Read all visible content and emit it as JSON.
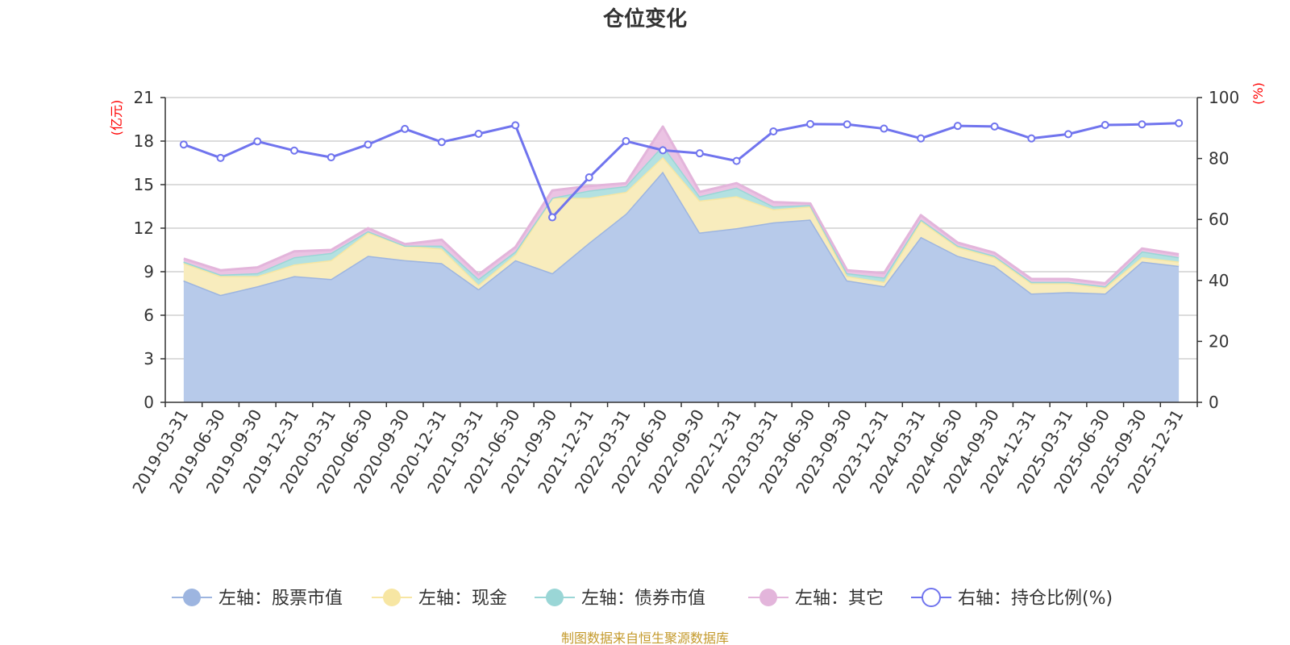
{
  "chart_data": {
    "type": "area",
    "title": "仓位变化",
    "left_axis": {
      "unit": "(亿元)",
      "range": [
        0,
        21
      ],
      "ticks": [
        "0",
        "3",
        "6",
        "9",
        "12",
        "15",
        "18",
        "21"
      ],
      "color": "#ff0000"
    },
    "right_axis": {
      "unit": "(%)",
      "range": [
        0,
        100
      ],
      "ticks": [
        "0",
        "20",
        "40",
        "60",
        "80",
        "100"
      ],
      "color": "#ff0000"
    },
    "categories": [
      "2019-03-31",
      "2019-06-30",
      "2019-09-30",
      "2019-12-31",
      "2020-03-31",
      "2020-06-30",
      "2020-09-30",
      "2020-12-31",
      "2021-03-31",
      "2021-06-30",
      "2021-09-30",
      "2021-12-31",
      "2022-03-31",
      "2022-06-30",
      "2022-09-30",
      "2022-12-31",
      "2023-03-31",
      "2023-06-30",
      "2023-09-30",
      "2023-12-31",
      "2024-03-31",
      "2024-06-30",
      "2024-09-30",
      "2024-12-31",
      "2025-03-31",
      "2025-06-30",
      "2025-09-30",
      "2025-12-31"
    ],
    "stacked_series": [
      {
        "name": "左轴：股票市值",
        "color": "#9db5e0",
        "fill": "#b7caea",
        "values": [
          8.4,
          7.4,
          8.0,
          8.7,
          8.5,
          10.1,
          9.8,
          9.6,
          7.8,
          9.8,
          8.9,
          11.0,
          13.0,
          15.9,
          11.7,
          12.0,
          12.4,
          12.6,
          8.4,
          8.0,
          11.4,
          10.1,
          9.4,
          7.5,
          7.6,
          7.5,
          9.7,
          9.4
        ]
      },
      {
        "name": "左轴：现金",
        "color": "#f7e6a3",
        "fill": "#f8ecbd",
        "values": [
          1.2,
          1.3,
          0.7,
          0.8,
          1.3,
          1.6,
          1.0,
          1.0,
          0.3,
          0.4,
          5.2,
          3.1,
          1.5,
          1.0,
          2.2,
          2.2,
          0.9,
          0.9,
          0.3,
          0.3,
          1.1,
          0.6,
          0.6,
          0.7,
          0.6,
          0.4,
          0.3,
          0.3
        ]
      },
      {
        "name": "左轴：债券市值",
        "color": "#9ad6d6",
        "fill": "#b3e1e1",
        "values": [
          0.1,
          0.1,
          0.2,
          0.5,
          0.5,
          0.1,
          0.0,
          0.2,
          0.4,
          0.2,
          0.0,
          0.5,
          0.4,
          0.8,
          0.3,
          0.6,
          0.2,
          0.1,
          0.2,
          0.3,
          0.1,
          0.1,
          0.1,
          0.1,
          0.1,
          0.1,
          0.4,
          0.3
        ]
      },
      {
        "name": "左轴：其它",
        "color": "#e3b5db",
        "fill": "#ebc3e3",
        "values": [
          0.2,
          0.3,
          0.4,
          0.4,
          0.2,
          0.2,
          0.1,
          0.4,
          0.3,
          0.3,
          0.5,
          0.3,
          0.2,
          1.3,
          0.3,
          0.3,
          0.3,
          0.1,
          0.2,
          0.3,
          0.3,
          0.2,
          0.2,
          0.2,
          0.2,
          0.2,
          0.2,
          0.2
        ]
      }
    ],
    "line_series": {
      "name": "右轴：持仓比例(%)",
      "color": "#7074ee",
      "values": [
        84.6,
        80.2,
        85.6,
        82.6,
        80.4,
        84.6,
        89.7,
        85.4,
        88.1,
        90.9,
        60.7,
        73.8,
        85.7,
        82.7,
        81.7,
        79.2,
        88.9,
        91.3,
        91.2,
        89.8,
        86.6,
        90.7,
        90.5,
        86.6,
        88.0,
        91.0,
        91.2,
        91.6
      ]
    },
    "legend": [
      "左轴：股票市值",
      "左轴：现金",
      "左轴：债券市值",
      "左轴：其它",
      "右轴：持仓比例(%)"
    ],
    "legend_position": "bottom",
    "grid": true
  },
  "footer": {
    "source": "制图数据来自恒生聚源数据库",
    "color": "#c49a2c"
  }
}
